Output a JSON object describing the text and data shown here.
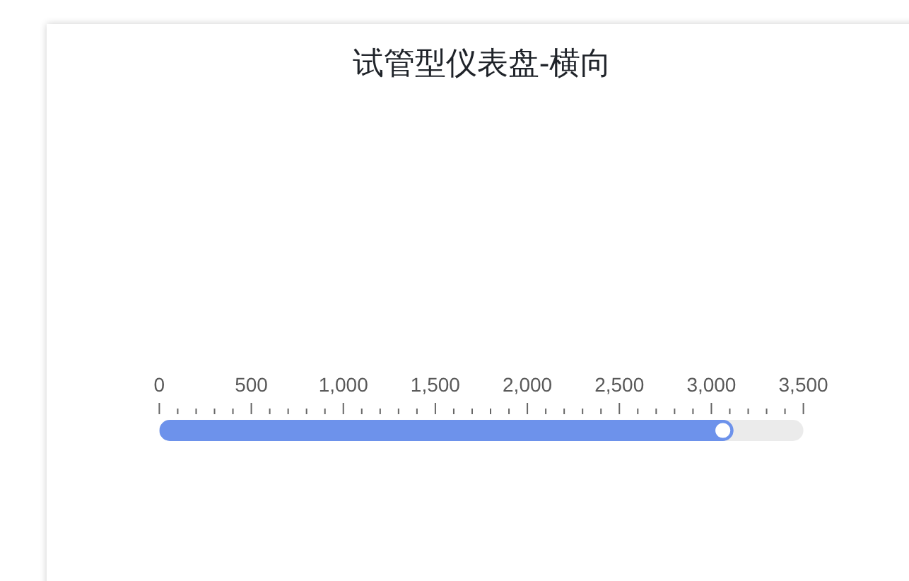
{
  "chart_data": {
    "type": "bar",
    "orientation": "horizontal",
    "title": "试管型仪表盘-横向",
    "categories": [
      null
    ],
    "values": [
      3120
    ],
    "color": "#6d92eb",
    "xlim": [
      0,
      3500
    ],
    "xticks": [
      0,
      {
        "value": 100,
        "label": null
      },
      {
        "value": 200,
        "label": null
      },
      {
        "value": 300,
        "label": null
      },
      {
        "value": 400,
        "label": null
      },
      500,
      {
        "value": 600,
        "label": null
      },
      {
        "value": 700,
        "label": null
      },
      {
        "value": 800,
        "label": null
      },
      {
        "value": 900,
        "label": null
      },
      {
        "value": 1000,
        "label": "1,000"
      },
      {
        "value": 1100,
        "label": null
      },
      {
        "value": 1200,
        "label": null
      },
      {
        "value": 1300,
        "label": null
      },
      {
        "value": 1400,
        "label": null
      },
      {
        "value": 1500,
        "label": "1,500"
      },
      {
        "value": 1600,
        "label": null
      },
      {
        "value": 1700,
        "label": null
      },
      {
        "value": 1800,
        "label": null
      },
      {
        "value": 1900,
        "label": null
      },
      {
        "value": 2000,
        "label": "2,000"
      },
      {
        "value": 2100,
        "label": null
      },
      {
        "value": 2200,
        "label": null
      },
      {
        "value": 2300,
        "label": null
      },
      {
        "value": 2400,
        "label": null
      },
      {
        "value": 2500,
        "label": "2,500"
      },
      {
        "value": 2600,
        "label": null
      },
      {
        "value": 2700,
        "label": null
      },
      {
        "value": 2800,
        "label": null
      },
      {
        "value": 2900,
        "label": null
      },
      {
        "value": 3000,
        "label": "3,000"
      },
      {
        "value": 3100,
        "label": null
      },
      {
        "value": 3200,
        "label": null
      },
      {
        "value": 3300,
        "label": null
      },
      {
        "value": 3400,
        "label": null
      },
      {
        "value": 3500,
        "label": "3,500"
      }
    ],
    "tick_labels": "x"
  }
}
